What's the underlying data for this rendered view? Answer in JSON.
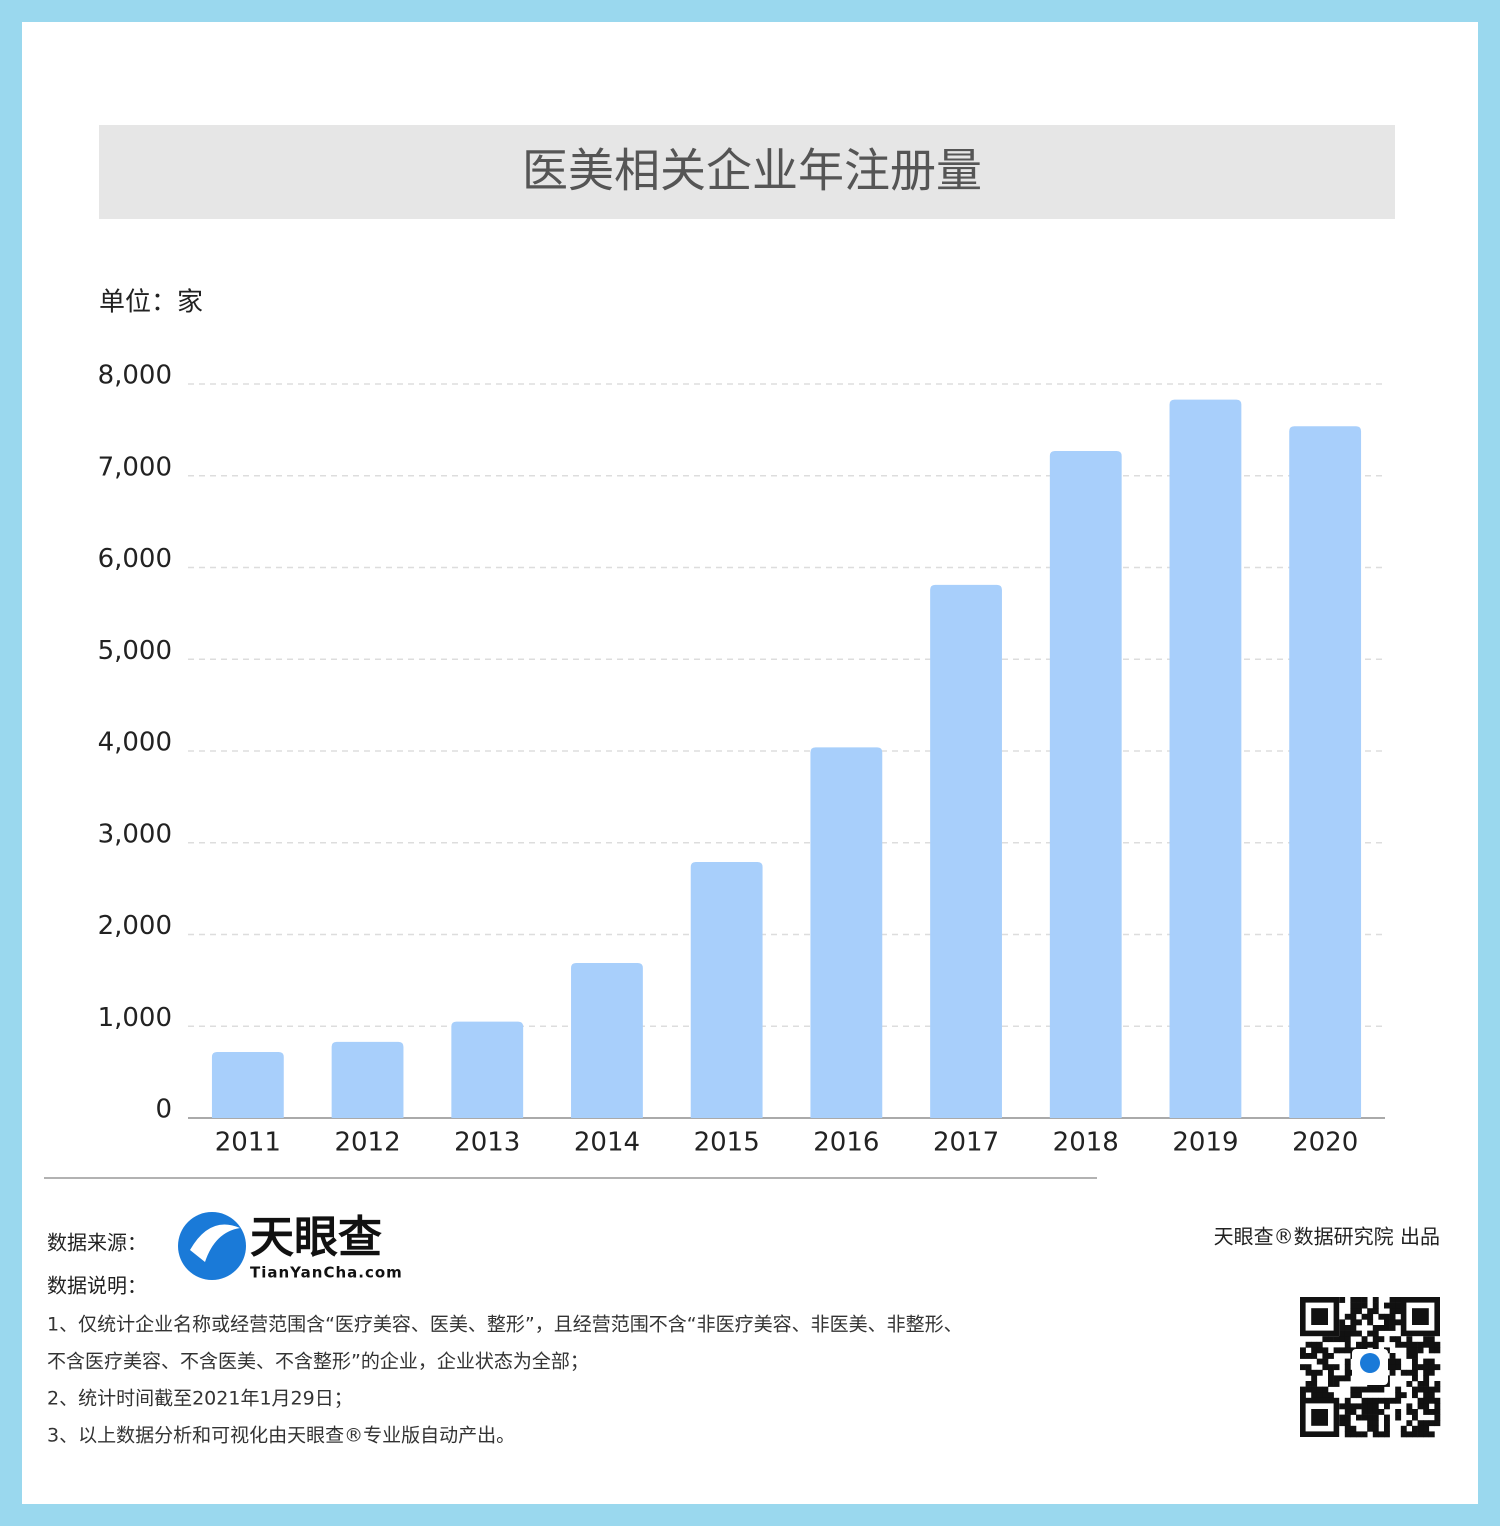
{
  "chart_data": {
    "type": "bar",
    "title": "医美相关企业年注册量",
    "unit_label": "单位：家",
    "categories": [
      "2011",
      "2012",
      "2013",
      "2014",
      "2015",
      "2016",
      "2017",
      "2018",
      "2019",
      "2020"
    ],
    "values": [
      720,
      830,
      1050,
      1690,
      2790,
      4040,
      5810,
      7270,
      7830,
      7540
    ],
    "color": "#a8cffb",
    "ylim": [
      0,
      8000
    ],
    "yticks": [
      0,
      {
        "value": 1000,
        "label": "1,000"
      },
      {
        "value": 2000,
        "label": "2,000"
      },
      {
        "value": 3000,
        "label": "3,000"
      },
      {
        "value": 4000,
        "label": "4,000"
      },
      {
        "value": 5000,
        "label": "5,000"
      },
      {
        "value": 6000,
        "label": "6,000"
      },
      {
        "value": 7000,
        "label": "7,000"
      },
      {
        "value": 8000,
        "label": "8,000"
      }
    ],
    "grid": true
  },
  "footer": {
    "source_label": "数据来源：",
    "logo_name": "天眼查",
    "logo_url": "TianYanCha.com",
    "producer": "天眼查®数据研究院 出品",
    "notes_title": "数据说明：",
    "notes": [
      "1、仅统计企业名称或经营范围含“医疗美容、医美、整形”，且经营范围不含“非医疗美容、非医美、非整形、",
      "不含医疗美容、不含医美、不含整形”的企业，企业状态为全部；",
      "2、统计时间截至2021年1月29日；",
      "3、以上数据分析和可视化由天眼查®专业版自动产出。"
    ]
  }
}
